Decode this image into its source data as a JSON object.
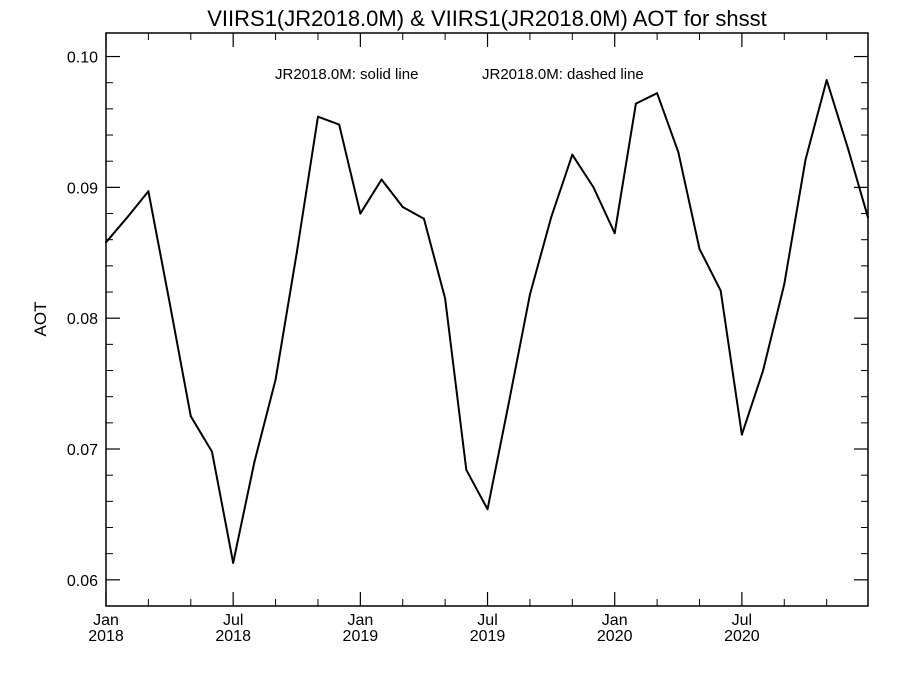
{
  "chart_data": {
    "type": "line",
    "title": "VIIRS1(JR2018.0M) & VIIRS1(JR2018.0M)  AOT for shsst",
    "xlabel": "",
    "ylabel": "AOT",
    "legend": [
      "JR2018.0M: solid line",
      "JR2018.0M: dashed line"
    ],
    "legend_placement": "top-center",
    "grid": false,
    "xlim": [
      "2018-01",
      "2020-12"
    ],
    "ylim": [
      0.058,
      0.1018
    ],
    "x_ticks": [
      {
        "position": "2018-01",
        "label_top": "Jan",
        "label_bottom": "2018"
      },
      {
        "position": "2018-07",
        "label_top": "Jul",
        "label_bottom": "2018"
      },
      {
        "position": "2019-01",
        "label_top": "Jan",
        "label_bottom": "2019"
      },
      {
        "position": "2019-07",
        "label_top": "Jul",
        "label_bottom": "2019"
      },
      {
        "position": "2020-01",
        "label_top": "Jan",
        "label_bottom": "2020"
      },
      {
        "position": "2020-07",
        "label_top": "Jul",
        "label_bottom": "2020"
      }
    ],
    "y_ticks": [
      "0.06",
      "0.07",
      "0.08",
      "0.09",
      "0.10"
    ],
    "x": [
      "2018-01",
      "2018-02",
      "2018-03",
      "2018-04",
      "2018-05",
      "2018-06",
      "2018-07",
      "2018-08",
      "2018-09",
      "2018-10",
      "2018-11",
      "2018-12",
      "2019-01",
      "2019-02",
      "2019-03",
      "2019-04",
      "2019-05",
      "2019-06",
      "2019-07",
      "2019-08",
      "2019-09",
      "2019-10",
      "2019-11",
      "2019-12",
      "2020-01",
      "2020-02",
      "2020-03",
      "2020-04",
      "2020-05",
      "2020-06",
      "2020-07",
      "2020-08",
      "2020-09",
      "2020-10",
      "2020-11",
      "2020-12"
    ],
    "series": [
      {
        "name": "JR2018.0M",
        "style": "solid",
        "color": "#000000",
        "values": [
          0.0858,
          0.0877,
          0.0897,
          0.0812,
          0.0725,
          0.0698,
          0.0613,
          0.069,
          0.0753,
          0.085,
          0.0954,
          0.0948,
          0.088,
          0.0906,
          0.0885,
          0.0876,
          0.0815,
          0.0684,
          0.0654,
          0.0735,
          0.0818,
          0.0877,
          0.0925,
          0.09,
          0.0865,
          0.0964,
          0.0972,
          0.0927,
          0.0853,
          0.0821,
          0.0711,
          0.076,
          0.0826,
          0.0921,
          0.0982,
          0.093
        ]
      }
    ],
    "last_value": 0.0877
  }
}
